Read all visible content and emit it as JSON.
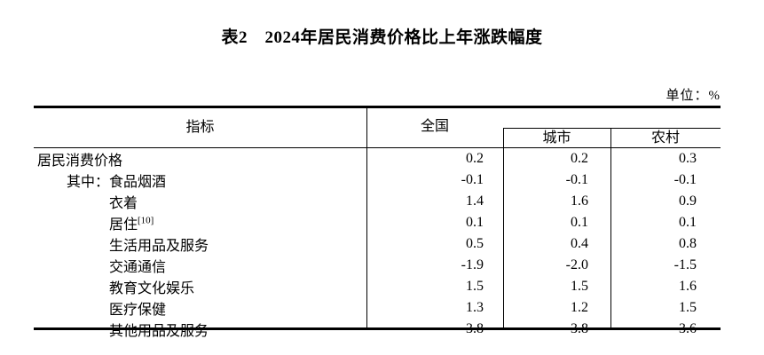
{
  "title": "表2　2024年居民消费价格比上年涨跌幅度",
  "unit_label": "单位：%",
  "colors": {
    "background": "#ffffff",
    "text": "#000000",
    "border": "#000000"
  },
  "table": {
    "columns": {
      "indicator": "指标",
      "national": "全国",
      "urban": "城市",
      "rural": "农村"
    },
    "rows": [
      {
        "prefix": "",
        "label": "居民消费价格",
        "sup": "",
        "indent": 0,
        "national": "0.2",
        "urban": "0.2",
        "rural": "0.3"
      },
      {
        "prefix": "其中：",
        "label": "食品烟酒",
        "sup": "",
        "indent": 1,
        "national": "-0.1",
        "urban": "-0.1",
        "rural": "-0.1"
      },
      {
        "prefix": "",
        "label": "衣着",
        "sup": "",
        "indent": 2,
        "national": "1.4",
        "urban": "1.6",
        "rural": "0.9"
      },
      {
        "prefix": "",
        "label": "居住",
        "sup": "[10]",
        "indent": 2,
        "national": "0.1",
        "urban": "0.1",
        "rural": "0.1"
      },
      {
        "prefix": "",
        "label": "生活用品及服务",
        "sup": "",
        "indent": 2,
        "national": "0.5",
        "urban": "0.4",
        "rural": "0.8"
      },
      {
        "prefix": "",
        "label": "交通通信",
        "sup": "",
        "indent": 2,
        "national": "-1.9",
        "urban": "-2.0",
        "rural": "-1.5"
      },
      {
        "prefix": "",
        "label": "教育文化娱乐",
        "sup": "",
        "indent": 2,
        "national": "1.5",
        "urban": "1.5",
        "rural": "1.6"
      },
      {
        "prefix": "",
        "label": "医疗保健",
        "sup": "",
        "indent": 2,
        "national": "1.3",
        "urban": "1.2",
        "rural": "1.5"
      },
      {
        "prefix": "",
        "label": "其他用品及服务",
        "sup": "",
        "indent": 2,
        "national": "3.8",
        "urban": "3.8",
        "rural": "3.6"
      }
    ]
  },
  "chart_data": {
    "type": "table",
    "title": "表2　2024年居民消费价格比上年涨跌幅度",
    "unit": "%",
    "categories": [
      "居民消费价格",
      "其中：食品烟酒",
      "衣着",
      "居住[10]",
      "生活用品及服务",
      "交通通信",
      "教育文化娱乐",
      "医疗保健",
      "其他用品及服务"
    ],
    "series": [
      {
        "name": "全国",
        "values": [
          0.2,
          -0.1,
          1.4,
          0.1,
          0.5,
          -1.9,
          1.5,
          1.3,
          3.8
        ]
      },
      {
        "name": "城市",
        "values": [
          0.2,
          -0.1,
          1.6,
          0.1,
          0.4,
          -2.0,
          1.5,
          1.2,
          3.8
        ]
      },
      {
        "name": "农村",
        "values": [
          0.3,
          -0.1,
          0.9,
          0.1,
          0.8,
          -1.5,
          1.6,
          1.5,
          3.6
        ]
      }
    ]
  }
}
